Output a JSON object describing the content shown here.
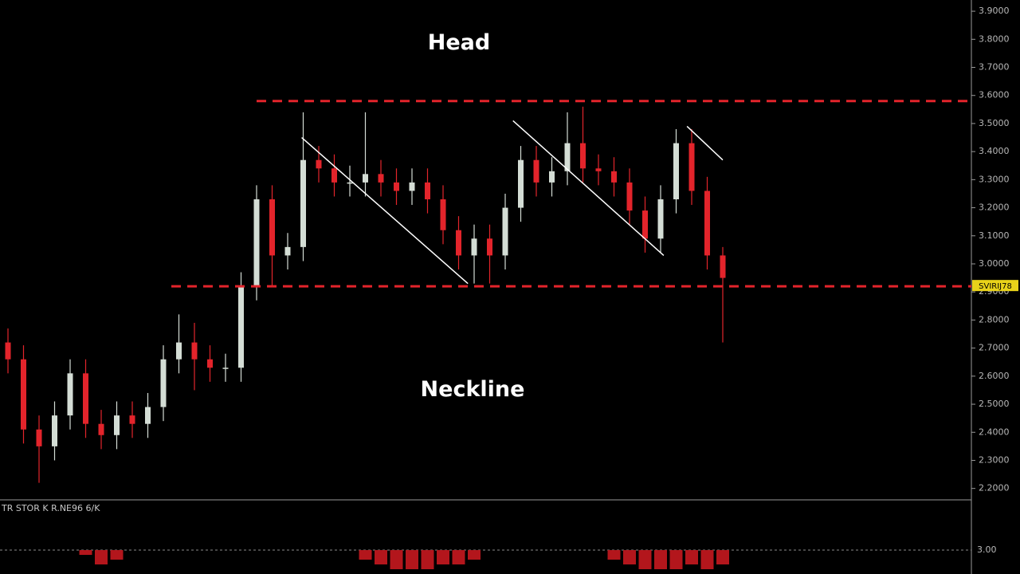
{
  "chart_data": {
    "type": "candlestick",
    "annotations": [
      "Head",
      "Neckline"
    ],
    "price_badge": "SVIRIJ78",
    "up_color": "#d4ddd5",
    "down_color": "#e3242b",
    "level_color": "#e3242b",
    "trendline_color": "#ffffff",
    "ylim": [
      2.165,
      3.94
    ],
    "yticks": [
      {
        "value": 3.9,
        "label": "3.9000"
      },
      {
        "value": 3.8,
        "label": "3.8000"
      },
      {
        "value": 3.7,
        "label": "3.7000"
      },
      {
        "value": 3.6,
        "label": "3.6000"
      },
      {
        "value": 3.5,
        "label": "3.5000"
      },
      {
        "value": 3.4,
        "label": "3.4000"
      },
      {
        "value": 3.3,
        "label": "3.3000"
      },
      {
        "value": 3.2,
        "label": "3.2000"
      },
      {
        "value": 3.1,
        "label": "3.1000"
      },
      {
        "value": 3,
        "label": "3.0000"
      },
      {
        "value": 2.9,
        "label": "2.9000"
      },
      {
        "value": 2.8,
        "label": "2.8000"
      },
      {
        "value": 2.7,
        "label": "2.7000"
      },
      {
        "value": 2.6,
        "label": "2.6000"
      },
      {
        "value": 2.5,
        "label": "2.5000"
      },
      {
        "value": 2.4,
        "label": "2.4000"
      },
      {
        "value": 2.3,
        "label": "2.3000"
      },
      {
        "value": 2.2,
        "label": "2.2000"
      }
    ],
    "open": [
      2.72,
      2.66,
      2.41,
      2.35,
      2.46,
      2.61,
      2.43,
      2.39,
      2.46,
      2.43,
      2.49,
      2.66,
      2.72,
      2.66,
      2.63,
      2.63,
      2.92,
      3.23,
      3.03,
      3.06,
      3.37,
      3.34,
      3.29,
      3.29,
      3.32,
      3.29,
      3.26,
      3.29,
      3.23,
      3.12,
      3.03,
      3.09,
      3.03,
      3.2,
      3.37,
      3.29,
      3.33,
      3.43,
      3.34,
      3.33,
      3.29,
      3.19,
      3.09,
      3.23,
      3.43,
      3.26,
      3.03
    ],
    "high": [
      2.77,
      2.71,
      2.46,
      2.51,
      2.66,
      2.66,
      2.48,
      2.51,
      2.51,
      2.54,
      2.71,
      2.82,
      2.79,
      2.71,
      2.68,
      2.97,
      3.28,
      3.28,
      3.11,
      3.54,
      3.42,
      3.39,
      3.35,
      3.54,
      3.37,
      3.34,
      3.34,
      3.34,
      3.28,
      3.17,
      3.14,
      3.14,
      3.25,
      3.42,
      3.42,
      3.38,
      3.54,
      3.56,
      3.39,
      3.38,
      3.34,
      3.24,
      3.28,
      3.48,
      3.48,
      3.31,
      3.06
    ],
    "low": [
      2.61,
      2.36,
      2.22,
      2.3,
      2.41,
      2.38,
      2.34,
      2.34,
      2.38,
      2.38,
      2.44,
      2.61,
      2.55,
      2.58,
      2.58,
      2.58,
      2.87,
      2.92,
      2.98,
      3.01,
      3.29,
      3.24,
      3.24,
      3.24,
      3.24,
      3.21,
      3.21,
      3.18,
      3.07,
      2.98,
      2.93,
      2.93,
      2.98,
      3.15,
      3.24,
      3.24,
      3.28,
      3.29,
      3.28,
      3.24,
      3.14,
      3.04,
      3.04,
      3.18,
      3.21,
      2.98,
      2.72
    ],
    "close": [
      2.66,
      2.41,
      2.35,
      2.46,
      2.61,
      2.43,
      2.39,
      2.46,
      2.43,
      2.49,
      2.66,
      2.72,
      2.66,
      2.63,
      2.63,
      2.92,
      3.23,
      3.03,
      3.06,
      3.37,
      3.34,
      3.29,
      3.29,
      3.32,
      3.29,
      3.26,
      3.29,
      3.23,
      3.12,
      3.03,
      3.09,
      3.03,
      3.2,
      3.37,
      3.29,
      3.33,
      3.43,
      3.34,
      3.33,
      3.29,
      3.19,
      3.09,
      3.23,
      3.43,
      3.26,
      3.03,
      2.95
    ],
    "levels": [
      3.58,
      2.92
    ],
    "trendlines": [
      {
        "x": [
          18.9,
          29.6
        ],
        "y": [
          3.45,
          2.93
        ]
      },
      {
        "x": [
          32.5,
          42.2
        ],
        "y": [
          3.51,
          3.03
        ]
      },
      {
        "x": [
          43.7,
          46
        ],
        "y": [
          3.49,
          3.37
        ]
      }
    ],
    "indicator": {
      "label": "TR STOR K  R.NE96 6/K",
      "color": "#b3161c",
      "ylim": [
        2.95,
        3.105
      ],
      "yticks": [
        {
          "value": 3,
          "label": "3.00"
        }
      ],
      "values": [
        3,
        3,
        3,
        3,
        3,
        2.99,
        2.97,
        2.98,
        3,
        3,
        3,
        3,
        3,
        3,
        3,
        3,
        3,
        3,
        3,
        3,
        3,
        3,
        3,
        2.98,
        2.97,
        2.96,
        2.96,
        2.96,
        2.97,
        2.97,
        2.98,
        3,
        3,
        3,
        3,
        3,
        3,
        3,
        3,
        2.98,
        2.97,
        2.96,
        2.96,
        2.96,
        2.97,
        2.96,
        2.97
      ]
    }
  }
}
